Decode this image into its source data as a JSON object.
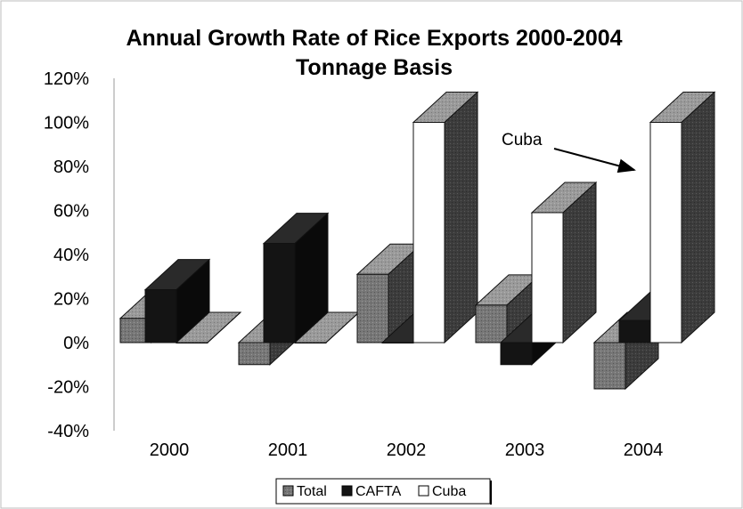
{
  "chart_data": {
    "type": "bar",
    "title": "Annual Growth Rate of Rice Exports 2000-2004",
    "subtitle": "Tonnage Basis",
    "xlabel": "",
    "ylabel": "",
    "categories": [
      "2000",
      "2001",
      "2002",
      "2003",
      "2004"
    ],
    "series": [
      {
        "name": "Total",
        "color": "#6e6e6e",
        "values": [
          0.11,
          -0.1,
          0.31,
          0.17,
          -0.21
        ]
      },
      {
        "name": "CAFTA",
        "color": "#141414",
        "values": [
          0.24,
          0.45,
          0.0,
          -0.1,
          0.1
        ]
      },
      {
        "name": "Cuba",
        "color": "#ffffff",
        "values": [
          0.0,
          0.0,
          1.0,
          0.59,
          1.0
        ]
      }
    ],
    "ylim": [
      -0.4,
      1.2
    ],
    "yticks": [
      "120%",
      "100%",
      "80%",
      "60%",
      "40%",
      "20%",
      "0%",
      "-20%",
      "-40%"
    ],
    "annotations": [
      {
        "text": "Cuba",
        "target": {
          "series": "Cuba",
          "category": "2004"
        }
      }
    ],
    "legend": {
      "position": "bottom-center",
      "entries": [
        "Total",
        "CAFTA",
        "Cuba"
      ]
    },
    "grid": false,
    "style": "3d-clustered-column"
  }
}
